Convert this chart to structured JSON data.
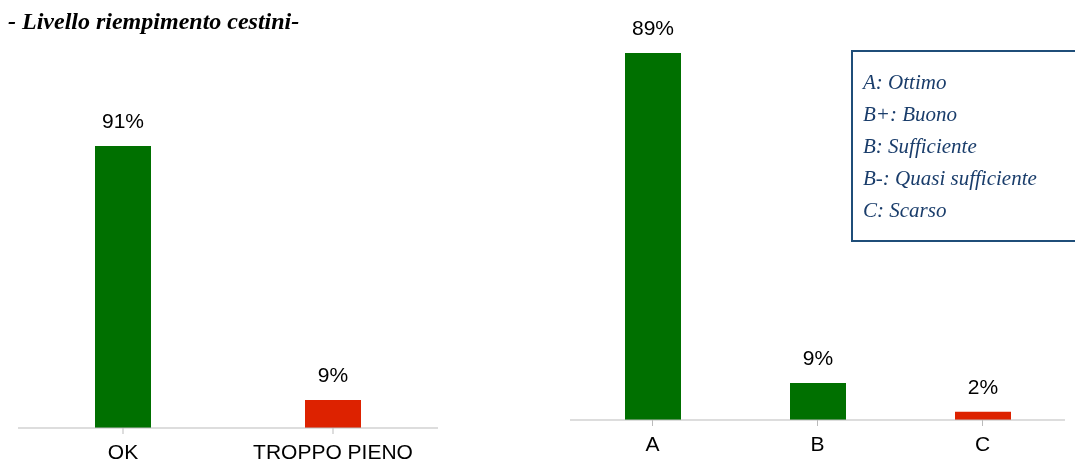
{
  "chart_data": [
    {
      "type": "bar",
      "title": "- Livello riempimento cestini-",
      "categories": [
        "OK",
        "TROPPO PIENO"
      ],
      "values": [
        91,
        9
      ],
      "colors": [
        "#007000",
        "#dd2200"
      ],
      "value_labels": [
        "91%",
        "9%"
      ],
      "grid": false,
      "legend": false
    },
    {
      "type": "bar",
      "categories": [
        "A",
        "B",
        "C"
      ],
      "values": [
        89,
        9,
        2
      ],
      "colors": [
        "#007000",
        "#007000",
        "#dd2200"
      ],
      "value_labels": [
        "89%",
        "9%",
        "2%"
      ],
      "grid": false,
      "legend": false,
      "annotations": [
        "A: Ottimo",
        "B+: Buono",
        "B: Sufficiente",
        "B-: Quasi sufficiente",
        "C: Scarso"
      ]
    }
  ]
}
